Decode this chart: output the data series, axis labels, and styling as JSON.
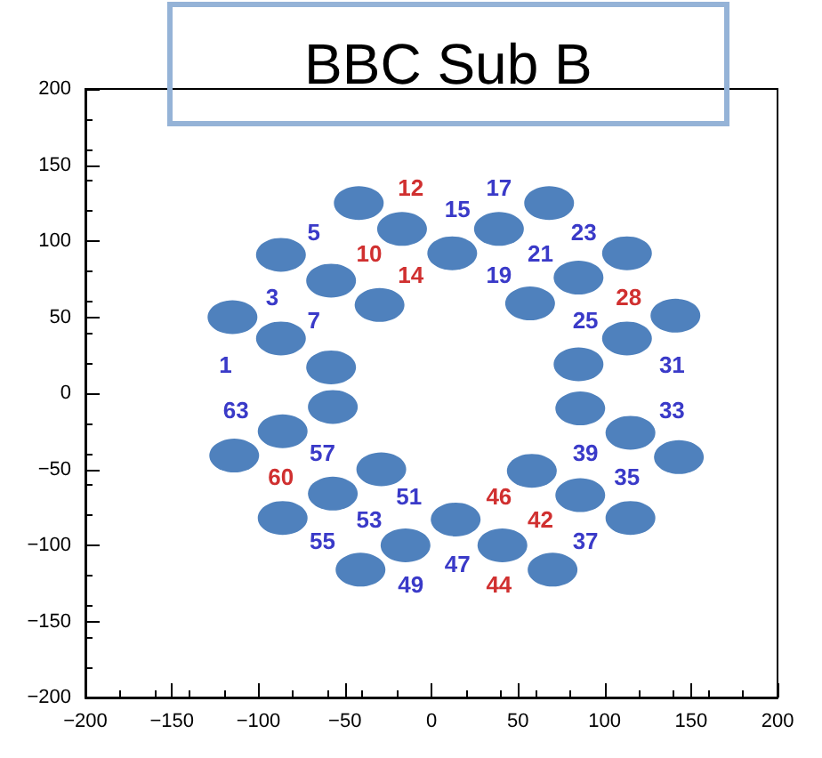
{
  "chart_data": {
    "type": "scatter",
    "title": "BBC Sub B",
    "xlim": [
      -200,
      200
    ],
    "xticks": [
      -200,
      -150,
      -100,
      -50,
      0,
      50,
      100,
      150,
      200
    ],
    "ylim": [
      -200,
      200
    ],
    "yticks": [
      -200,
      -150,
      -100,
      -50,
      0,
      50,
      100,
      150,
      200
    ],
    "grid": false,
    "marker": "circle",
    "series": [
      {
        "color": "#4f81bd",
        "x": [
          -42,
          -17,
          -87,
          12,
          39,
          68,
          -58,
          -30,
          113,
          85,
          57,
          -115,
          -87,
          -58,
          141,
          113,
          85,
          -57,
          -86,
          -114,
          -29,
          -57,
          -86,
          -15,
          -41,
          14,
          41,
          70,
          58,
          86,
          115,
          86,
          115,
          143
        ],
        "values": [
          125,
          108,
          91,
          92,
          108,
          125,
          74,
          58,
          92,
          76,
          59,
          50,
          36,
          17,
          51,
          36,
          19,
          -9,
          -25,
          -41,
          -50,
          -66,
          -82,
          -100,
          -116,
          -83,
          -100,
          -116,
          -51,
          -67,
          -82,
          -10,
          -26,
          -42
        ]
      }
    ],
    "annotations": [
      "12",
      "17",
      "15",
      "5",
      "23",
      "10",
      "21",
      "14",
      "19",
      "3",
      "28",
      "7",
      "25",
      "1",
      "31",
      "63",
      "33",
      "57",
      "39",
      "60",
      "35",
      "51",
      "46",
      "53",
      "42",
      "55",
      "37",
      "47",
      "49",
      "44"
    ]
  }
}
